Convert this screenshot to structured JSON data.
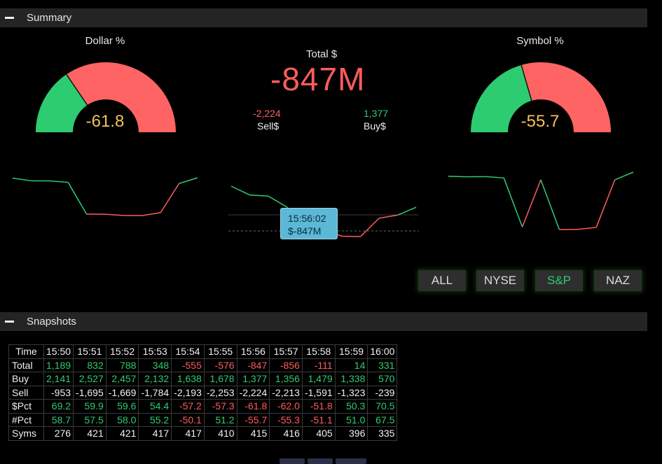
{
  "summary": {
    "header": "Summary",
    "dollar_gauge": {
      "title": "Dollar %",
      "value": "-61.8",
      "buy_fraction": 0.31
    },
    "symbol_gauge": {
      "title": "Symbol %",
      "value": "-55.7",
      "buy_fraction": 0.41
    },
    "total": {
      "label": "Total $",
      "value": "-847M"
    },
    "sell": {
      "value": "-2,224",
      "label": "Sell$"
    },
    "buy": {
      "value": "1,377",
      "label": "Buy$"
    },
    "tooltip": {
      "time": "15:56:02",
      "value": "$-847M"
    },
    "filters": [
      {
        "label": "ALL",
        "active": false
      },
      {
        "label": "NYSE",
        "active": false
      },
      {
        "label": "S&P",
        "active": true
      },
      {
        "label": "NAZ",
        "active": false
      }
    ],
    "colors": {
      "positive": "#2ecc71",
      "negative": "#ff5c5c",
      "gauge_value": "#f4c15a"
    }
  },
  "snapshots": {
    "header": "Snapshots",
    "columns": [
      "Time",
      "15:50",
      "15:51",
      "15:52",
      "15:53",
      "15:54",
      "15:55",
      "15:56",
      "15:57",
      "15:58",
      "15:59",
      "16:00"
    ],
    "rows": [
      {
        "label": "Total",
        "colored": true,
        "values": [
          "1,189",
          "832",
          "788",
          "348",
          "-555",
          "-576",
          "-847",
          "-856",
          "-111",
          "14",
          "331"
        ]
      },
      {
        "label": "Buy",
        "colored": true,
        "values": [
          "2,141",
          "2,527",
          "2,457",
          "2,132",
          "1,638",
          "1,678",
          "1,377",
          "1,356",
          "1,479",
          "1,338",
          "570"
        ]
      },
      {
        "label": "Sell",
        "colored": false,
        "values": [
          "-953",
          "-1,695",
          "-1,669",
          "-1,784",
          "-2,193",
          "-2,253",
          "-2,224",
          "-2,213",
          "-1,591",
          "-1,323",
          "-239"
        ]
      },
      {
        "label": "$Pct",
        "colored": true,
        "values": [
          "69.2",
          "59.9",
          "59.6",
          "54.4",
          "-57.2",
          "-57.3",
          "-61.8",
          "-62.0",
          "-51.8",
          "50.3",
          "70.5"
        ]
      },
      {
        "label": "#Pct",
        "colored": true,
        "values": [
          "58.7",
          "57.5",
          "58.0",
          "55.2",
          "-50.1",
          "51.2",
          "-55.7",
          "-55.3",
          "-51.1",
          "51.0",
          "67.5"
        ]
      },
      {
        "label": "Syms",
        "colored": false,
        "values": [
          "276",
          "421",
          "421",
          "417",
          "417",
          "410",
          "415",
          "416",
          "405",
          "396",
          "335"
        ]
      }
    ]
  },
  "chart_data": [
    {
      "type": "line",
      "name": "dollar-pct-sparkline",
      "y": [
        69.2,
        59.9,
        59.6,
        54.4,
        -57.2,
        -57.3,
        -61.8,
        -62.0,
        -51.8,
        50.3,
        70.5
      ]
    },
    {
      "type": "line",
      "name": "total-sparkline",
      "y": [
        1189,
        832,
        788,
        348,
        -555,
        -576,
        -847,
        -856,
        -111,
        14,
        331
      ]
    },
    {
      "type": "line",
      "name": "symbol-pct-sparkline",
      "y": [
        58.7,
        57.5,
        58.0,
        55.2,
        -50.1,
        51.2,
        -55.7,
        -55.3,
        -51.1,
        51.0,
        67.5
      ]
    }
  ]
}
